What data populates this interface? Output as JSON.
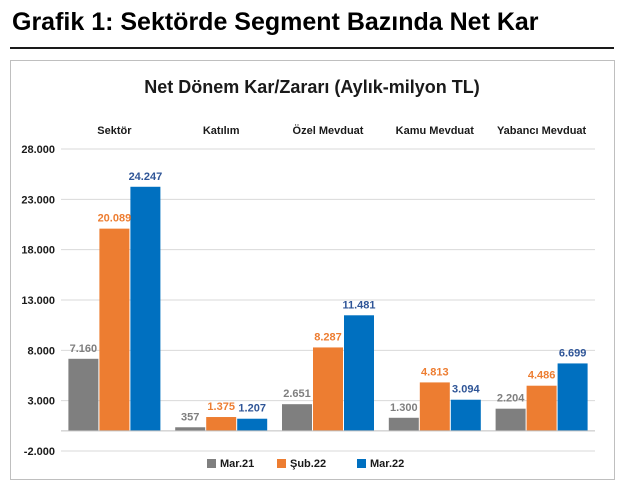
{
  "page": {
    "title": "Grafik 1: Sektörde Segment Bazında Net Kar"
  },
  "chart_data": {
    "type": "bar",
    "title": "Net Dönem Kar/Zararı (Aylık-milyon TL)",
    "categories": [
      "Sektör",
      "Katılım",
      "Özel Mevduat",
      "Kamu Mevduat",
      "Yabancı Mevduat"
    ],
    "series": [
      {
        "name": "Mar.21",
        "color": "#7f7f7f",
        "label_color": "#7f7f7f",
        "values": [
          7160,
          357,
          2651,
          1300,
          2204
        ],
        "labels": [
          "7.160",
          "357",
          "2.651",
          "1.300",
          "2.204"
        ]
      },
      {
        "name": "Şub.22",
        "color": "#ed7d31",
        "label_color": "#ed7d31",
        "values": [
          20089,
          1375,
          8287,
          4813,
          4486
        ],
        "labels": [
          "20.089",
          "1.375",
          "8.287",
          "4.813",
          "4.486"
        ]
      },
      {
        "name": "Mar.22",
        "color": "#0070c0",
        "label_color": "#2f5597",
        "values": [
          24247,
          1207,
          11481,
          3094,
          6699
        ],
        "labels": [
          "24.247",
          "1.207",
          "11.481",
          "3.094",
          "6.699"
        ]
      }
    ],
    "y_ticks": [
      28000,
      23000,
      18000,
      13000,
      8000,
      3000,
      -2000
    ],
    "y_tick_labels": [
      "28.000",
      "23.000",
      "18.000",
      "13.000",
      "8.000",
      "3.000",
      "-2.000"
    ],
    "ylim": [
      -2000,
      28000
    ],
    "grid": true,
    "category_labels_position": "top",
    "legend_position": "bottom-center",
    "xlabel": "",
    "ylabel": ""
  }
}
